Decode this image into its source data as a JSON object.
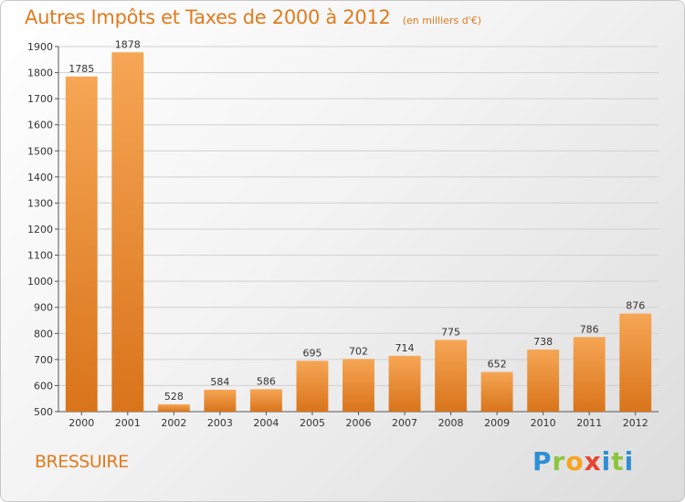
{
  "header": {
    "title": "Autres Impôts et Taxes de 2000 à 2012",
    "subtitle": "(en milliers d'€)"
  },
  "commune": "BRESSUIRE",
  "logo": {
    "text": "Proxiti",
    "colors": [
      "#2e8fd6",
      "#8cc63f",
      "#f7a41d",
      "#e8442e",
      "#2e8fd6",
      "#8cc63f"
    ]
  },
  "chart_data": {
    "type": "bar",
    "categories": [
      "2000",
      "2001",
      "2002",
      "2003",
      "2004",
      "2005",
      "2006",
      "2007",
      "2008",
      "2009",
      "2010",
      "2011",
      "2012"
    ],
    "values": [
      1785,
      1878,
      528,
      584,
      586,
      695,
      702,
      714,
      775,
      652,
      738,
      786,
      876
    ],
    "ylim": [
      500,
      1900
    ],
    "yticks": [
      500,
      600,
      700,
      800,
      900,
      1000,
      1100,
      1200,
      1300,
      1400,
      1500,
      1600,
      1700,
      1800,
      1900
    ],
    "grid": true,
    "bar_color": "#f0922e",
    "bar_color_dark": "#d9741a"
  }
}
